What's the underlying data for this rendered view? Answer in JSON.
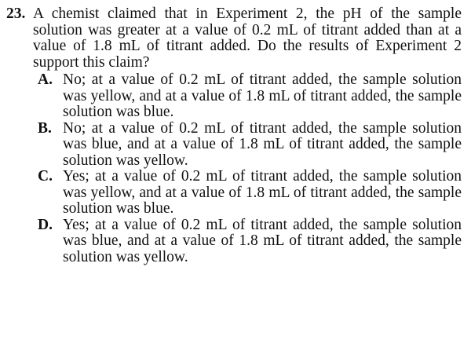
{
  "question": {
    "number": "23.",
    "stem": "A chemist claimed that in Experiment 2, the pH of the sample solution was greater at a value of 0.2 mL of titrant added than at a value of 1.8 mL of titrant added. Do the results of Experiment 2 support this claim?",
    "options": [
      {
        "letter": "A.",
        "text": "No; at a value of 0.2 mL of titrant added, the sample solution was yellow, and at a value of 1.8 mL of titrant added, the sample solution was blue."
      },
      {
        "letter": "B.",
        "text": "No; at a value of 0.2 mL of titrant added, the sample solution was blue, and at a value of 1.8 mL of titrant added, the sample solution was yellow."
      },
      {
        "letter": "C.",
        "text": "Yes; at a value of 0.2 mL of titrant added, the sample solution was yellow, and at a value of 1.8 mL of titrant added, the sample solution was blue."
      },
      {
        "letter": "D.",
        "text": "Yes; at a value of 0.2 mL of titrant added, the sample solution was blue, and at a value of 1.8 mL of titrant added, the sample solution was yellow."
      }
    ]
  }
}
